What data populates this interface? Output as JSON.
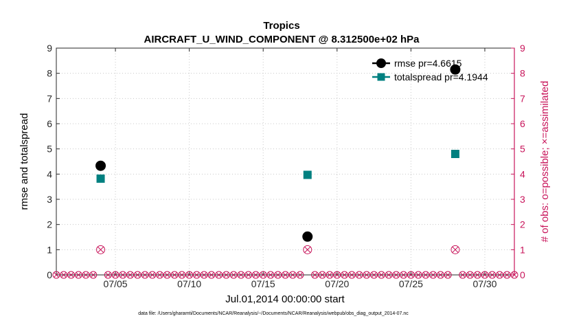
{
  "chart_data": {
    "type": "scatter",
    "title": "Tropics",
    "subtitle": "AIRCRAFT_U_WIND_COMPONENT @ 8.312500e+02 hPa",
    "xlabel": "Jul.01,2014 00:00:00 start",
    "ylabel": "rmse and totalspread",
    "ylabel_right": "# of obs: o=possible; ×=assimilated",
    "footer": "data file: /Users/gharamti/Documents/NCAR/Reanalysis/~/Documents/NCAR/Reanalysis/webpub/obs_diag_output_2014-07.nc",
    "xlim": [
      1,
      32
    ],
    "ylim": [
      0,
      9
    ],
    "ylim_right": [
      0,
      9
    ],
    "x_ticks": [
      {
        "value": 5,
        "label": "07/05"
      },
      {
        "value": 10,
        "label": "07/10"
      },
      {
        "value": 15,
        "label": "07/15"
      },
      {
        "value": 20,
        "label": "07/20"
      },
      {
        "value": 25,
        "label": "07/25"
      },
      {
        "value": 30,
        "label": "07/30"
      }
    ],
    "y_ticks": [
      "0",
      "1",
      "2",
      "3",
      "4",
      "5",
      "6",
      "7",
      "8",
      "9"
    ],
    "y_ticks_right": [
      "0",
      "1",
      "2",
      "3",
      "4",
      "5",
      "6",
      "7",
      "8",
      "9"
    ],
    "series": [
      {
        "name": "rmse pr=4.6615",
        "color": "#000000",
        "marker": "circle",
        "points": [
          {
            "x": 4,
            "y": 4.33
          },
          {
            "x": 18,
            "y": 1.52
          },
          {
            "x": 28,
            "y": 8.15
          }
        ]
      },
      {
        "name": "totalspread pr=4.1944",
        "color": "#008080",
        "marker": "square",
        "points": [
          {
            "x": 4,
            "y": 3.82
          },
          {
            "x": 18,
            "y": 3.97
          },
          {
            "x": 28,
            "y": 4.8
          }
        ]
      }
    ],
    "obs_series": {
      "color": "#c8145a",
      "possible": [
        {
          "x": 4,
          "y": 1
        },
        {
          "x": 18,
          "y": 1
        },
        {
          "x": 28,
          "y": 1
        }
      ],
      "assimilated": [
        {
          "x": 4,
          "y": 1
        },
        {
          "x": 18,
          "y": 1
        },
        {
          "x": 28,
          "y": 1
        }
      ],
      "zero_count_x": [
        1,
        1.5,
        2,
        2.5,
        3,
        3.5,
        4.5,
        5,
        5.5,
        6,
        6.5,
        7,
        7.5,
        8,
        8.5,
        9,
        9.5,
        10,
        10.5,
        11,
        11.5,
        12,
        12.5,
        13,
        13.5,
        14,
        14.5,
        15,
        15.5,
        16,
        16.5,
        17,
        17.5,
        18.5,
        19,
        19.5,
        20,
        20.5,
        21,
        21.5,
        22,
        22.5,
        23,
        23.5,
        24,
        24.5,
        25,
        25.5,
        26,
        26.5,
        27,
        27.5,
        28.5,
        29,
        29.5,
        30,
        30.5,
        31,
        31.5,
        32
      ]
    },
    "legend_position": "top-right"
  }
}
